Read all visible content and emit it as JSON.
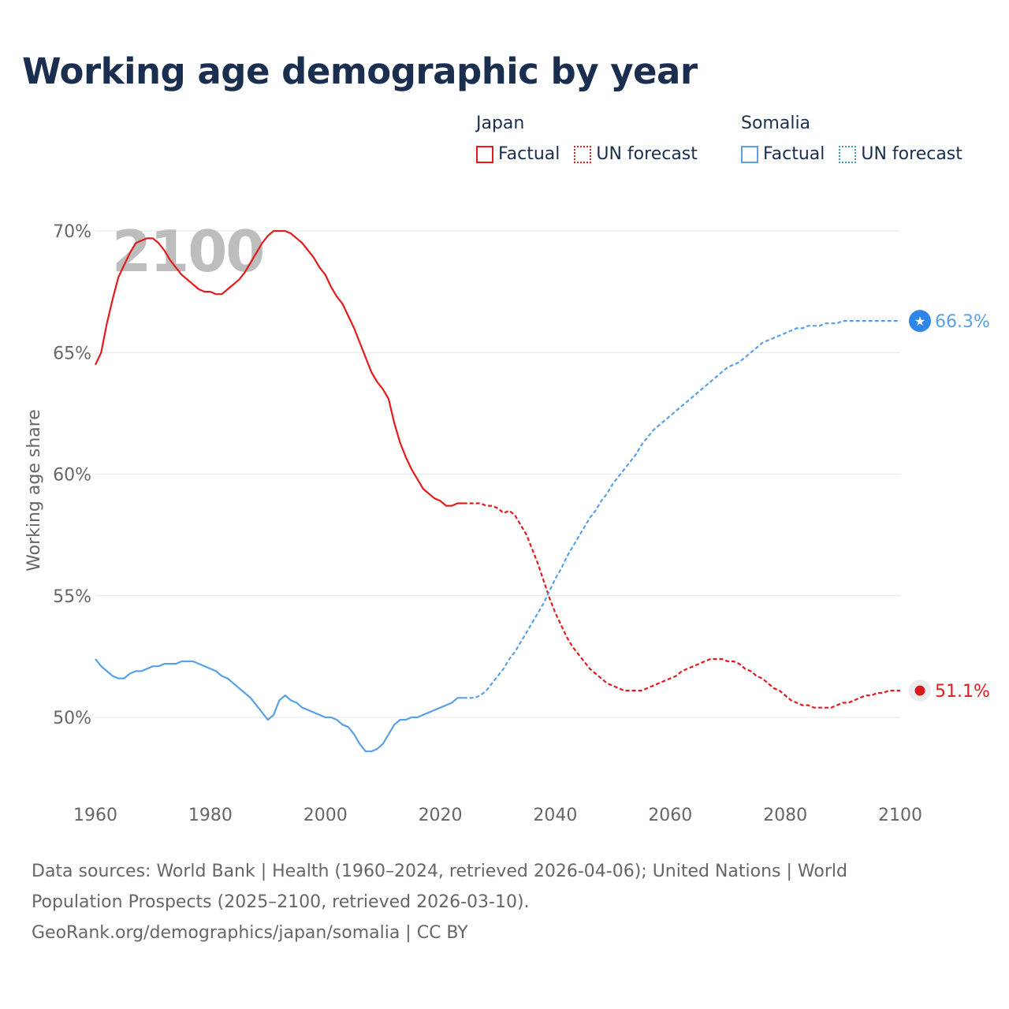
{
  "page": {
    "title": "Working age demographic by year",
    "footer_sources": "Data sources: World Bank | Health (1960–2024, retrieved 2026-04-06); United Nations | World Population Prospects (2025–2100, retrieved 2026-03-10).",
    "footer_credit": "GeoRank.org/demographics/japan/somalia | CC BY"
  },
  "legend": {
    "japan": {
      "name": "Japan",
      "factual": "Factual",
      "forecast": "UN forecast"
    },
    "somalia": {
      "name": "Somalia",
      "factual": "Factual",
      "forecast": "UN forecast"
    }
  },
  "colors": {
    "japan": "#e41a1c",
    "somalia": "#5aa0e6",
    "somalia_dot": "#2f86ea",
    "grid": "#e6e6e6",
    "tick": "#666666",
    "year_watermark": "#bdbdbd"
  },
  "chart_data": {
    "type": "line",
    "title": "Working age demographic by year",
    "xlabel": "",
    "ylabel": "Working age share",
    "xlim": [
      1960,
      2100
    ],
    "ylim": [
      47,
      72
    ],
    "x_ticks": [
      1960,
      1980,
      2000,
      2020,
      2040,
      2060,
      2080,
      2100
    ],
    "y_ticks": [
      50,
      55,
      60,
      65,
      70
    ],
    "y_tick_labels": [
      "50%",
      "55%",
      "60%",
      "65%",
      "70%"
    ],
    "x_tick_labels": [
      "1960",
      "1980",
      "2000",
      "2020",
      "2040",
      "2060",
      "2080",
      "2100"
    ],
    "year_label": "2100",
    "factual_end_year": 2024,
    "series": [
      {
        "name": "Japan",
        "end_label": "51.1%",
        "end_value": 51.1,
        "points": [
          [
            1960,
            64.5
          ],
          [
            1961,
            65
          ],
          [
            1962,
            66.2
          ],
          [
            1963,
            67.2
          ],
          [
            1964,
            68.1
          ],
          [
            1965,
            68.6
          ],
          [
            1966,
            69.1
          ],
          [
            1967,
            69.5
          ],
          [
            1968,
            69.6
          ],
          [
            1969,
            69.7
          ],
          [
            1970,
            69.7
          ],
          [
            1971,
            69.5
          ],
          [
            1972,
            69.2
          ],
          [
            1973,
            68.8
          ],
          [
            1974,
            68.5
          ],
          [
            1975,
            68.2
          ],
          [
            1976,
            68
          ],
          [
            1977,
            67.8
          ],
          [
            1978,
            67.6
          ],
          [
            1979,
            67.5
          ],
          [
            1980,
            67.5
          ],
          [
            1981,
            67.4
          ],
          [
            1982,
            67.4
          ],
          [
            1983,
            67.6
          ],
          [
            1984,
            67.8
          ],
          [
            1985,
            68
          ],
          [
            1986,
            68.3
          ],
          [
            1987,
            68.7
          ],
          [
            1988,
            69.1
          ],
          [
            1989,
            69.5
          ],
          [
            1990,
            69.8
          ],
          [
            1991,
            70
          ],
          [
            1992,
            70
          ],
          [
            1993,
            70
          ],
          [
            1994,
            69.9
          ],
          [
            1995,
            69.7
          ],
          [
            1996,
            69.5
          ],
          [
            1997,
            69.2
          ],
          [
            1998,
            68.9
          ],
          [
            1999,
            68.5
          ],
          [
            2000,
            68.2
          ],
          [
            2001,
            67.7
          ],
          [
            2002,
            67.3
          ],
          [
            2003,
            67
          ],
          [
            2004,
            66.5
          ],
          [
            2005,
            66
          ],
          [
            2006,
            65.4
          ],
          [
            2007,
            64.8
          ],
          [
            2008,
            64.2
          ],
          [
            2009,
            63.8
          ],
          [
            2010,
            63.5
          ],
          [
            2011,
            63.1
          ],
          [
            2012,
            62.1
          ],
          [
            2013,
            61.3
          ],
          [
            2014,
            60.7
          ],
          [
            2015,
            60.2
          ],
          [
            2016,
            59.8
          ],
          [
            2017,
            59.4
          ],
          [
            2018,
            59.2
          ],
          [
            2019,
            59
          ],
          [
            2020,
            58.9
          ],
          [
            2021,
            58.7
          ],
          [
            2022,
            58.7
          ],
          [
            2023,
            58.8
          ],
          [
            2024,
            58.8
          ],
          [
            2025,
            58.8
          ],
          [
            2026,
            58.8
          ],
          [
            2027,
            58.8
          ],
          [
            2028,
            58.7
          ],
          [
            2029,
            58.7
          ],
          [
            2030,
            58.6
          ],
          [
            2031,
            58.4
          ],
          [
            2032,
            58.5
          ],
          [
            2033,
            58.3
          ],
          [
            2034,
            57.9
          ],
          [
            2035,
            57.5
          ],
          [
            2036,
            56.9
          ],
          [
            2037,
            56.3
          ],
          [
            2038,
            55.6
          ],
          [
            2039,
            54.9
          ],
          [
            2040,
            54.3
          ],
          [
            2041,
            53.8
          ],
          [
            2042,
            53.3
          ],
          [
            2043,
            52.9
          ],
          [
            2044,
            52.6
          ],
          [
            2045,
            52.3
          ],
          [
            2046,
            52
          ],
          [
            2047,
            51.8
          ],
          [
            2048,
            51.6
          ],
          [
            2049,
            51.4
          ],
          [
            2050,
            51.3
          ],
          [
            2051,
            51.2
          ],
          [
            2052,
            51.1
          ],
          [
            2053,
            51.1
          ],
          [
            2054,
            51.1
          ],
          [
            2055,
            51.1
          ],
          [
            2056,
            51.2
          ],
          [
            2057,
            51.3
          ],
          [
            2058,
            51.4
          ],
          [
            2059,
            51.5
          ],
          [
            2060,
            51.6
          ],
          [
            2061,
            51.7
          ],
          [
            2062,
            51.9
          ],
          [
            2063,
            52
          ],
          [
            2064,
            52.1
          ],
          [
            2065,
            52.2
          ],
          [
            2066,
            52.3
          ],
          [
            2067,
            52.4
          ],
          [
            2068,
            52.4
          ],
          [
            2069,
            52.4
          ],
          [
            2070,
            52.3
          ],
          [
            2071,
            52.3
          ],
          [
            2072,
            52.2
          ],
          [
            2073,
            52
          ],
          [
            2074,
            51.9
          ],
          [
            2075,
            51.7
          ],
          [
            2076,
            51.6
          ],
          [
            2077,
            51.4
          ],
          [
            2078,
            51.2
          ],
          [
            2079,
            51.1
          ],
          [
            2080,
            50.9
          ],
          [
            2081,
            50.7
          ],
          [
            2082,
            50.6
          ],
          [
            2083,
            50.5
          ],
          [
            2084,
            50.5
          ],
          [
            2085,
            50.4
          ],
          [
            2086,
            50.4
          ],
          [
            2087,
            50.4
          ],
          [
            2088,
            50.4
          ],
          [
            2089,
            50.5
          ],
          [
            2090,
            50.6
          ],
          [
            2091,
            50.6
          ],
          [
            2092,
            50.7
          ],
          [
            2093,
            50.8
          ],
          [
            2094,
            50.9
          ],
          [
            2095,
            50.9
          ],
          [
            2096,
            51
          ],
          [
            2097,
            51
          ],
          [
            2098,
            51.1
          ],
          [
            2099,
            51.1
          ],
          [
            2100,
            51.1
          ]
        ]
      },
      {
        "name": "Somalia",
        "end_label": "66.3%",
        "end_value": 66.3,
        "points": [
          [
            1960,
            52.4
          ],
          [
            1961,
            52.1
          ],
          [
            1962,
            51.9
          ],
          [
            1963,
            51.7
          ],
          [
            1964,
            51.6
          ],
          [
            1965,
            51.6
          ],
          [
            1966,
            51.8
          ],
          [
            1967,
            51.9
          ],
          [
            1968,
            51.9
          ],
          [
            1969,
            52
          ],
          [
            1970,
            52.1
          ],
          [
            1971,
            52.1
          ],
          [
            1972,
            52.2
          ],
          [
            1973,
            52.2
          ],
          [
            1974,
            52.2
          ],
          [
            1975,
            52.3
          ],
          [
            1976,
            52.3
          ],
          [
            1977,
            52.3
          ],
          [
            1978,
            52.2
          ],
          [
            1979,
            52.1
          ],
          [
            1980,
            52
          ],
          [
            1981,
            51.9
          ],
          [
            1982,
            51.7
          ],
          [
            1983,
            51.6
          ],
          [
            1984,
            51.4
          ],
          [
            1985,
            51.2
          ],
          [
            1986,
            51
          ],
          [
            1987,
            50.8
          ],
          [
            1988,
            50.5
          ],
          [
            1989,
            50.2
          ],
          [
            1990,
            49.9
          ],
          [
            1991,
            50.1
          ],
          [
            1992,
            50.7
          ],
          [
            1993,
            50.9
          ],
          [
            1994,
            50.7
          ],
          [
            1995,
            50.6
          ],
          [
            1996,
            50.4
          ],
          [
            1997,
            50.3
          ],
          [
            1998,
            50.2
          ],
          [
            1999,
            50.1
          ],
          [
            2000,
            50
          ],
          [
            2001,
            50
          ],
          [
            2002,
            49.9
          ],
          [
            2003,
            49.7
          ],
          [
            2004,
            49.6
          ],
          [
            2005,
            49.3
          ],
          [
            2006,
            48.9
          ],
          [
            2007,
            48.6
          ],
          [
            2008,
            48.6
          ],
          [
            2009,
            48.7
          ],
          [
            2010,
            48.9
          ],
          [
            2011,
            49.3
          ],
          [
            2012,
            49.7
          ],
          [
            2013,
            49.9
          ],
          [
            2014,
            49.9
          ],
          [
            2015,
            50
          ],
          [
            2016,
            50
          ],
          [
            2017,
            50.1
          ],
          [
            2018,
            50.2
          ],
          [
            2019,
            50.3
          ],
          [
            2020,
            50.4
          ],
          [
            2021,
            50.5
          ],
          [
            2022,
            50.6
          ],
          [
            2023,
            50.8
          ],
          [
            2024,
            50.8
          ],
          [
            2025,
            50.8
          ],
          [
            2026,
            50.8
          ],
          [
            2027,
            50.9
          ],
          [
            2028,
            51.1
          ],
          [
            2029,
            51.4
          ],
          [
            2030,
            51.7
          ],
          [
            2031,
            52
          ],
          [
            2032,
            52.4
          ],
          [
            2033,
            52.7
          ],
          [
            2034,
            53.1
          ],
          [
            2035,
            53.5
          ],
          [
            2036,
            53.9
          ],
          [
            2037,
            54.3
          ],
          [
            2038,
            54.7
          ],
          [
            2039,
            55.2
          ],
          [
            2040,
            55.7
          ],
          [
            2041,
            56.1
          ],
          [
            2042,
            56.6
          ],
          [
            2043,
            57
          ],
          [
            2044,
            57.4
          ],
          [
            2045,
            57.8
          ],
          [
            2046,
            58.2
          ],
          [
            2047,
            58.5
          ],
          [
            2048,
            58.9
          ],
          [
            2049,
            59.2
          ],
          [
            2050,
            59.6
          ],
          [
            2051,
            59.9
          ],
          [
            2052,
            60.2
          ],
          [
            2053,
            60.5
          ],
          [
            2054,
            60.8
          ],
          [
            2055,
            61.2
          ],
          [
            2056,
            61.5
          ],
          [
            2057,
            61.8
          ],
          [
            2058,
            62
          ],
          [
            2059,
            62.2
          ],
          [
            2060,
            62.4
          ],
          [
            2061,
            62.6
          ],
          [
            2062,
            62.8
          ],
          [
            2063,
            63
          ],
          [
            2064,
            63.2
          ],
          [
            2065,
            63.4
          ],
          [
            2066,
            63.6
          ],
          [
            2067,
            63.8
          ],
          [
            2068,
            64
          ],
          [
            2069,
            64.2
          ],
          [
            2070,
            64.4
          ],
          [
            2071,
            64.5
          ],
          [
            2072,
            64.6
          ],
          [
            2073,
            64.8
          ],
          [
            2074,
            65
          ],
          [
            2075,
            65.2
          ],
          [
            2076,
            65.4
          ],
          [
            2077,
            65.5
          ],
          [
            2078,
            65.6
          ],
          [
            2079,
            65.7
          ],
          [
            2080,
            65.8
          ],
          [
            2081,
            65.9
          ],
          [
            2082,
            66
          ],
          [
            2083,
            66
          ],
          [
            2084,
            66.1
          ],
          [
            2085,
            66.1
          ],
          [
            2086,
            66.1
          ],
          [
            2087,
            66.2
          ],
          [
            2088,
            66.2
          ],
          [
            2089,
            66.2
          ],
          [
            2090,
            66.3
          ],
          [
            2091,
            66.3
          ],
          [
            2092,
            66.3
          ],
          [
            2093,
            66.3
          ],
          [
            2094,
            66.3
          ],
          [
            2095,
            66.3
          ],
          [
            2096,
            66.3
          ],
          [
            2097,
            66.3
          ],
          [
            2098,
            66.3
          ],
          [
            2099,
            66.3
          ],
          [
            2100,
            66.3
          ]
        ]
      }
    ]
  }
}
